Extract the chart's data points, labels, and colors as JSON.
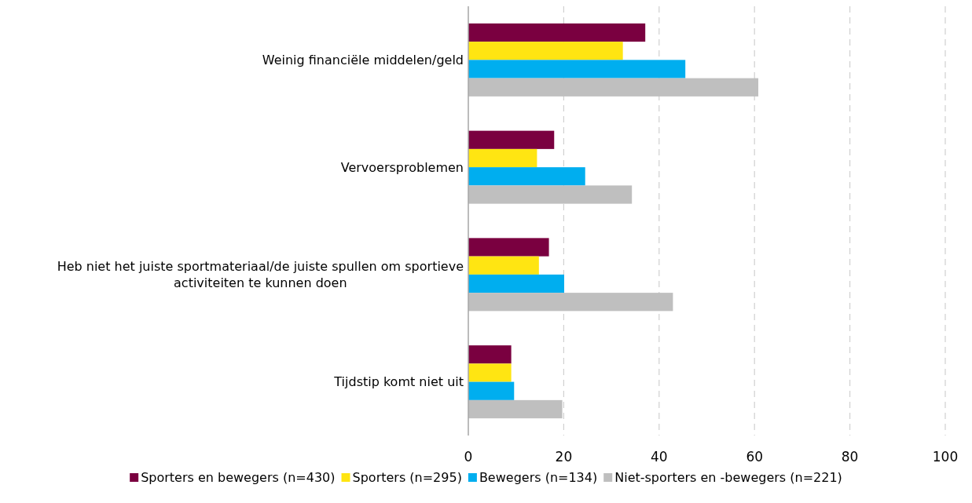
{
  "chart_data": {
    "type": "bar",
    "orientation": "horizontal",
    "categories": [
      "Weinig financiële middelen/geld",
      "Vervoersproblemen",
      "Heb niet het juiste sportmateriaal/de juiste spullen om sportieve activiteiten te kunnen doen",
      "Tijdstip komt niet uit"
    ],
    "series": [
      {
        "name": "Sporters en bewegers (n=430)",
        "color": "#7a0040",
        "values": [
          37.1,
          18.0,
          16.9,
          9.0
        ]
      },
      {
        "name": "Sporters (n=295)",
        "color": "#ffe512",
        "values": [
          32.4,
          14.4,
          14.8,
          9.0
        ]
      },
      {
        "name": "Bewegers (n=134)",
        "color": "#00aeef",
        "values": [
          45.5,
          24.5,
          20.1,
          9.6
        ]
      },
      {
        "name": "Niet-sporters en -bewegers (n=221)",
        "color": "#bfbfbf",
        "values": [
          60.8,
          34.3,
          42.9,
          19.7
        ]
      }
    ],
    "xlim": [
      0,
      100
    ],
    "xticks": [
      0,
      20,
      40,
      60,
      80,
      100
    ],
    "grid": "x",
    "legend": "bottom"
  }
}
